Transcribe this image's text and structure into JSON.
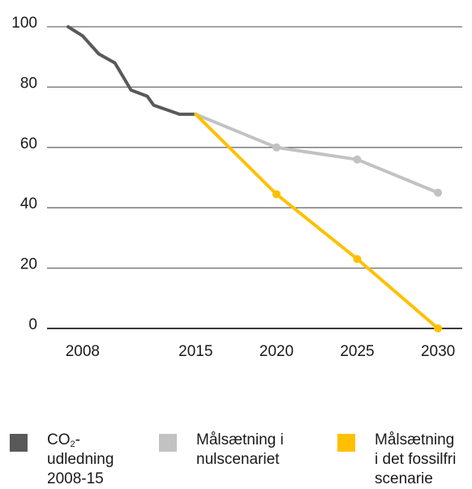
{
  "chart_data": {
    "type": "line",
    "x_ticks": [
      "2008",
      "2015",
      "2020",
      "2025",
      "2030"
    ],
    "y_ticks": [
      "0",
      "20",
      "40",
      "60",
      "80",
      "100"
    ],
    "ylim": [
      0,
      100
    ],
    "xlim": [
      2005.8,
      2031.5
    ],
    "grid": "horizontal",
    "legend_position": "bottom",
    "series": [
      {
        "name_parts": [
          "CO",
          "2",
          "-",
          "udledning",
          "2008-15"
        ],
        "color": "#595959",
        "markers": false,
        "points": [
          [
            2007.1,
            100
          ],
          [
            2008,
            97
          ],
          [
            2009,
            91
          ],
          [
            2010,
            88
          ],
          [
            2011,
            79
          ],
          [
            2012,
            77
          ],
          [
            2012.4,
            74
          ],
          [
            2014,
            71
          ],
          [
            2015,
            71
          ]
        ]
      },
      {
        "name_parts": [
          "Målsætning i",
          "nulscenariet"
        ],
        "color": "#c2c2c2",
        "markers": true,
        "points": [
          [
            2015,
            71
          ],
          [
            2020,
            60
          ],
          [
            2025,
            56
          ],
          [
            2030,
            45
          ]
        ]
      },
      {
        "name_parts": [
          "Målsætning",
          "i det fossilfri",
          "scenarie"
        ],
        "color": "#ffc000",
        "markers": true,
        "points": [
          [
            2015,
            71
          ],
          [
            2020,
            44.5
          ],
          [
            2025,
            23
          ],
          [
            2030,
            0
          ]
        ]
      }
    ]
  }
}
